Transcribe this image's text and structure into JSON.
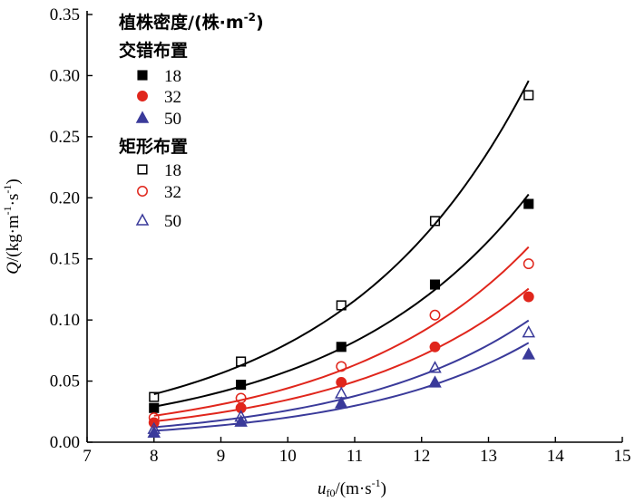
{
  "chart_data": {
    "type": "scatter",
    "xlabel": "u_f0/(m·s⁻¹)",
    "xlabel_main": "u",
    "xlabel_sub": "f0",
    "xlabel_unit": "/(m·s",
    "xlabel_sup": "-1",
    "xlabel_close": ")",
    "ylabel": "Q/(kg·m⁻¹·s⁻¹)",
    "ylabel_main": "Q",
    "ylabel_unit1": "/(kg·m",
    "ylabel_sup1": "-1",
    "ylabel_unit2": "·s",
    "ylabel_sup2": "-1",
    "ylabel_close": ")",
    "xlim": [
      7,
      15
    ],
    "ylim": [
      0,
      0.35
    ],
    "x_ticks": [
      "7",
      "8",
      "9",
      "10",
      "11",
      "12",
      "13",
      "14",
      "15"
    ],
    "y_ticks": [
      "0.00",
      "0.05",
      "0.10",
      "0.15",
      "0.20",
      "0.25",
      "0.30",
      "0.35"
    ],
    "grid": false,
    "legend": {
      "placement": "top-left",
      "header": "植株密度/(株·m",
      "header_sup": "-2",
      "header_close": ")",
      "group1": "交错布置",
      "group2": "矩形布置"
    },
    "series": [
      {
        "name": "18",
        "group": "交错布置",
        "marker": "square-filled",
        "color": "#000000",
        "x": [
          8.0,
          9.3,
          10.8,
          12.2,
          13.6
        ],
        "values": [
          0.028,
          0.047,
          0.078,
          0.129,
          0.195
        ]
      },
      {
        "name": "32",
        "group": "交错布置",
        "marker": "circle-filled",
        "color": "#e0261c",
        "x": [
          8.0,
          9.3,
          10.8,
          12.2,
          13.6
        ],
        "values": [
          0.016,
          0.028,
          0.049,
          0.078,
          0.119
        ]
      },
      {
        "name": "50",
        "group": "交错布置",
        "marker": "triangle-filled",
        "color": "#3a3a9a",
        "x": [
          8.0,
          9.3,
          10.8,
          12.2,
          13.6
        ],
        "values": [
          0.008,
          0.017,
          0.032,
          0.049,
          0.072
        ]
      },
      {
        "name": "18",
        "group": "矩形布置",
        "marker": "square-open",
        "color": "#000000",
        "x": [
          8.0,
          9.3,
          10.8,
          12.2,
          13.6
        ],
        "values": [
          0.037,
          0.066,
          0.112,
          0.181,
          0.284
        ]
      },
      {
        "name": "32",
        "group": "矩形布置",
        "marker": "circle-open",
        "color": "#e0261c",
        "x": [
          8.0,
          9.3,
          10.8,
          12.2,
          13.6
        ],
        "values": [
          0.02,
          0.036,
          0.062,
          0.104,
          0.146
        ]
      },
      {
        "name": "50",
        "group": "矩形布置",
        "marker": "triangle-open",
        "color": "#3a3a9a",
        "x": [
          8.0,
          9.3,
          10.8,
          12.2,
          13.6
        ],
        "values": [
          0.011,
          0.021,
          0.04,
          0.061,
          0.09
        ]
      }
    ]
  }
}
